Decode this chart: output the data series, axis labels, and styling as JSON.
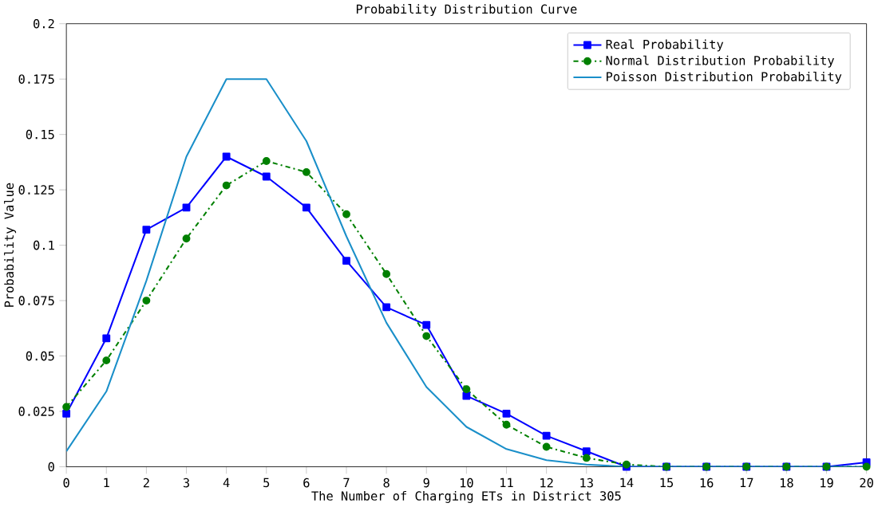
{
  "chart_data": {
    "type": "line",
    "title": "Probability Distribution Curve",
    "xlabel": "The Number of Charging ETs in District 305",
    "ylabel": "Probability Value",
    "x": [
      0,
      1,
      2,
      3,
      4,
      5,
      6,
      7,
      8,
      9,
      10,
      11,
      12,
      13,
      14,
      15,
      16,
      17,
      18,
      19,
      20
    ],
    "series": [
      {
        "name": "Real Probability",
        "color": "#0000ff",
        "marker": "square",
        "line_style": "solid",
        "values": [
          0.024,
          0.058,
          0.107,
          0.117,
          0.14,
          0.131,
          0.117,
          0.093,
          0.072,
          0.064,
          0.032,
          0.024,
          0.014,
          0.007,
          0,
          0,
          0,
          0,
          0,
          0,
          0.002
        ]
      },
      {
        "name": "Normal Distribution Probability",
        "color": "#008000",
        "marker": "circle",
        "line_style": "dashdot",
        "values": [
          0.027,
          0.048,
          0.075,
          0.103,
          0.127,
          0.138,
          0.133,
          0.114,
          0.087,
          0.059,
          0.035,
          0.019,
          0.009,
          0.004,
          0.001,
          0,
          0,
          0,
          0,
          0,
          0
        ]
      },
      {
        "name": "Poisson Distribution Probability",
        "color": "#1a8fc9",
        "marker": "none",
        "line_style": "solid",
        "values": [
          0.007,
          0.034,
          0.084,
          0.14,
          0.175,
          0.175,
          0.147,
          0.104,
          0.065,
          0.036,
          0.018,
          0.008,
          0.003,
          0.001,
          0,
          0,
          0,
          0,
          0,
          0,
          0
        ]
      }
    ],
    "xlim": [
      0,
      20
    ],
    "xticks": [
      0,
      1,
      2,
      3,
      4,
      5,
      6,
      7,
      8,
      9,
      10,
      11,
      12,
      13,
      14,
      15,
      16,
      17,
      18,
      19,
      20
    ],
    "ylim": [
      0,
      0.2
    ],
    "yticks": [
      0,
      0.025,
      0.05,
      0.075,
      0.1,
      0.125,
      0.15,
      0.175,
      0.2
    ],
    "grid": false,
    "legend": "top right"
  }
}
